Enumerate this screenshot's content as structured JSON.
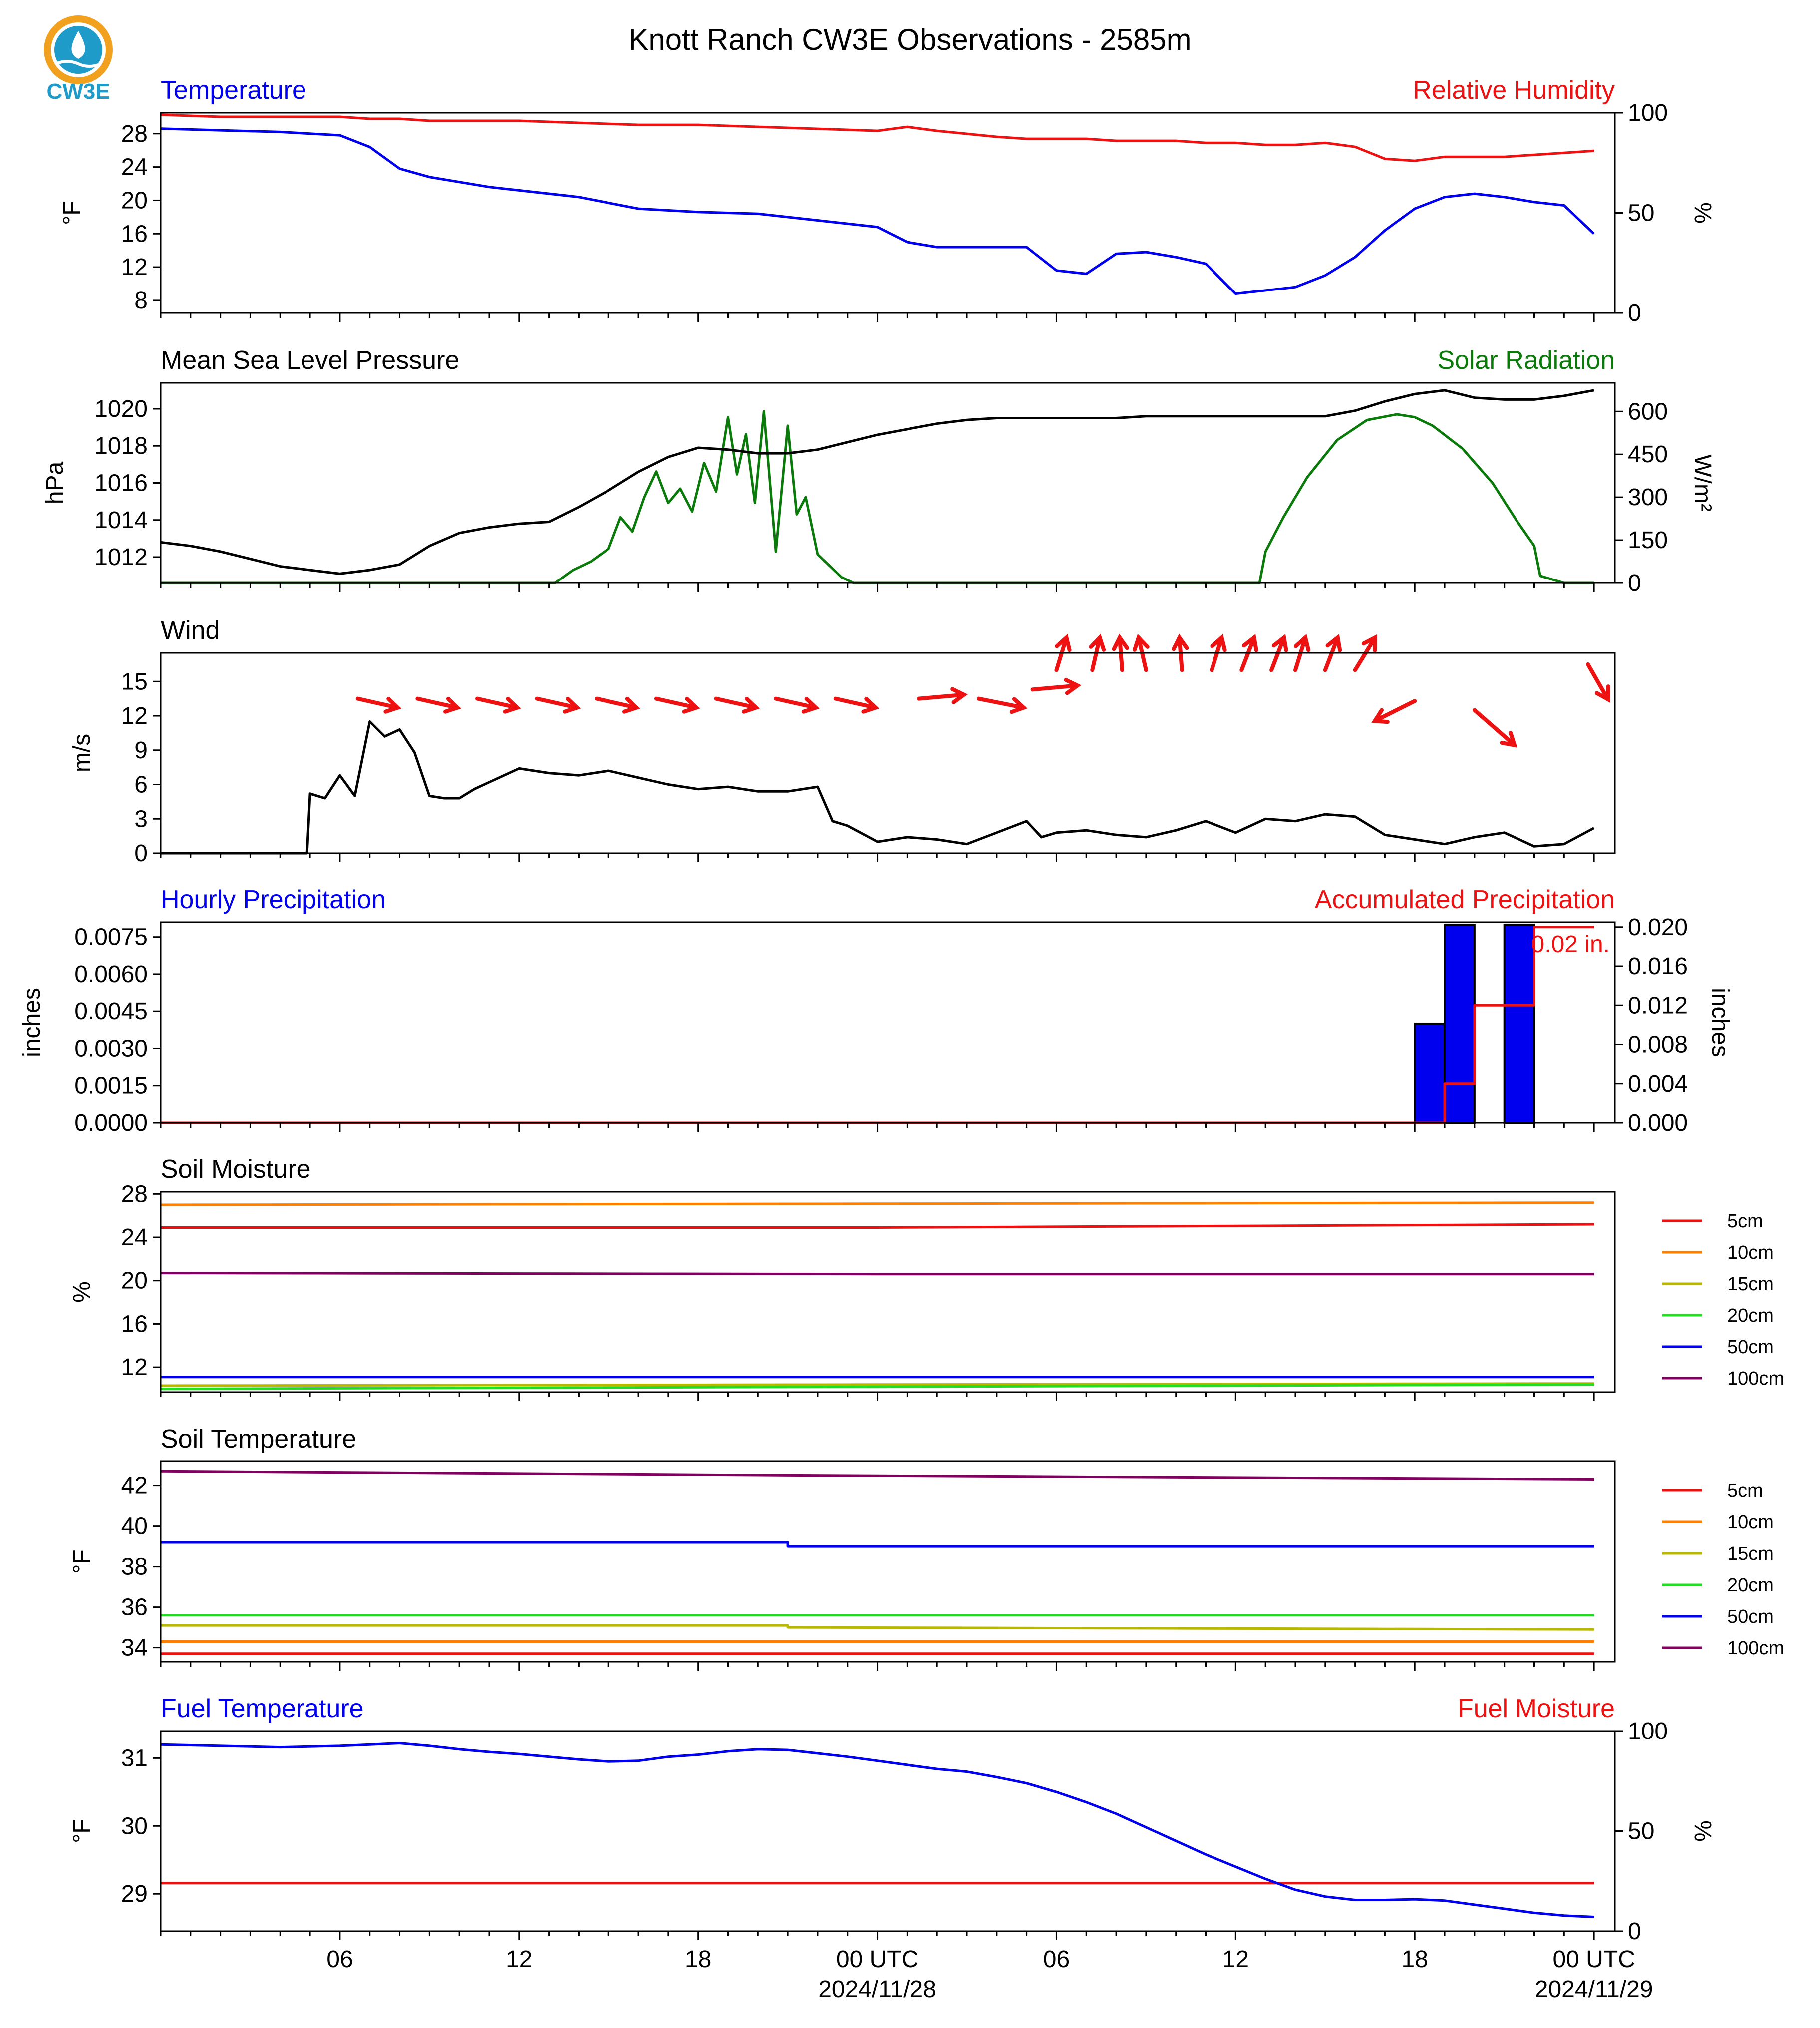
{
  "figure": {
    "title": "Knott Ranch CW3E Observations - 2585m",
    "logo_text": "CW3E",
    "x_axis": {
      "tick_labels": [
        "06",
        "12",
        "18",
        "00 UTC",
        "06",
        "12",
        "18",
        "00 UTC"
      ],
      "date_labels": [
        "2024/11/28",
        "2024/11/29"
      ]
    }
  },
  "colors": {
    "temperature": "#0000ee",
    "humidity": "#ee1111",
    "pressure": "#000000",
    "solar": "#0a7a0a",
    "wind_speed": "#000000",
    "wind_barb": "#ee1111",
    "precip_bar": "#0000ee",
    "precip_accum": "#ee1111",
    "logo": "#1f9bc9",
    "logo_orange": "#f2a11f"
  },
  "chart_data": [
    {
      "id": "temp_rh",
      "type": "line",
      "title_left": "Temperature",
      "title_right": "Relative Humidity",
      "ylabel_left": "°F",
      "ylabel_right": "%",
      "ylim_left": [
        6.5,
        30.5
      ],
      "ylim_right": [
        0,
        100
      ],
      "yticks_left": [
        "8",
        "12",
        "16",
        "20",
        "24",
        "28"
      ],
      "yticks_right": [
        "0",
        "50",
        "100"
      ],
      "x_hours": [
        0,
        2,
        4,
        6,
        7,
        8,
        9,
        10,
        11,
        12,
        14,
        16,
        18,
        20,
        22,
        24,
        25,
        26,
        28,
        29,
        30,
        31,
        32,
        33,
        34,
        35,
        36,
        37,
        38,
        39,
        40,
        41,
        42,
        43,
        44,
        45,
        46,
        47,
        48
      ],
      "temperature": [
        28.6,
        28.4,
        28.2,
        27.8,
        26.4,
        23.8,
        22.8,
        22.2,
        21.6,
        21.2,
        20.4,
        19.0,
        18.6,
        18.4,
        17.6,
        16.8,
        15.0,
        14.4,
        14.4,
        14.4,
        11.6,
        11.2,
        13.6,
        13.8,
        13.2,
        12.4,
        8.8,
        9.2,
        9.6,
        11.0,
        13.2,
        16.4,
        19.0,
        20.4,
        20.8,
        20.4,
        19.8,
        19.4,
        16.0
      ],
      "humidity": [
        99,
        98,
        98,
        98,
        97,
        97,
        96,
        96,
        96,
        96,
        95,
        94,
        94,
        93,
        92,
        91,
        93,
        91,
        88,
        87,
        87,
        87,
        86,
        86,
        86,
        85,
        85,
        84,
        84,
        85,
        83,
        77,
        76,
        78,
        78,
        78,
        79,
        80,
        81
      ]
    },
    {
      "id": "pres_solar",
      "type": "line",
      "title_left": "Mean Sea Level Pressure",
      "title_right": "Solar Radiation",
      "ylabel_left": "hPa",
      "ylabel_right": "W/m²",
      "ylim_left": [
        1010.6,
        1021.4
      ],
      "ylim_right": [
        0,
        700
      ],
      "yticks_left": [
        "1012",
        "1014",
        "1016",
        "1018",
        "1020"
      ],
      "yticks_right": [
        "0",
        "150",
        "300",
        "450",
        "600"
      ],
      "x_hours": [
        0,
        1,
        2,
        3,
        4,
        5,
        6,
        7,
        8,
        9,
        10,
        11,
        12,
        13,
        14,
        15,
        16,
        17,
        18,
        19,
        20,
        21,
        22,
        23,
        24,
        25,
        26,
        27,
        28,
        29,
        30,
        31,
        32,
        33,
        34,
        35,
        36,
        37,
        38,
        39,
        40,
        41,
        42,
        43,
        44,
        45,
        46,
        47,
        48
      ],
      "pressure": [
        1012.8,
        1012.6,
        1012.3,
        1011.9,
        1011.5,
        1011.3,
        1011.1,
        1011.3,
        1011.6,
        1012.6,
        1013.3,
        1013.6,
        1013.8,
        1013.9,
        1014.7,
        1015.6,
        1016.6,
        1017.4,
        1017.9,
        1017.8,
        1017.6,
        1017.6,
        1017.8,
        1018.2,
        1018.6,
        1018.9,
        1019.2,
        1019.4,
        1019.5,
        1019.5,
        1019.5,
        1019.5,
        1019.5,
        1019.6,
        1019.6,
        1019.6,
        1019.6,
        1019.6,
        1019.6,
        1019.6,
        1019.9,
        1020.4,
        1020.8,
        1021.0,
        1020.6,
        1020.5,
        1020.5,
        1020.7,
        1021.0
      ],
      "solar_x_hours": [
        0,
        13.2,
        13.8,
        14.4,
        15.0,
        15.4,
        15.8,
        16.2,
        16.6,
        17.0,
        17.4,
        17.8,
        18.2,
        18.6,
        19.0,
        19.3,
        19.6,
        19.9,
        20.2,
        20.6,
        21.0,
        21.3,
        21.6,
        22.0,
        22.4,
        22.8,
        23.2,
        36.8,
        37.0,
        37.6,
        38.4,
        39.4,
        40.4,
        41.4,
        42.0,
        42.6,
        43.6,
        44.6,
        45.4,
        46.0,
        46.2,
        47.0,
        48.0
      ],
      "solar": [
        0,
        0,
        45,
        75,
        120,
        230,
        180,
        300,
        390,
        280,
        330,
        250,
        420,
        320,
        580,
        380,
        520,
        280,
        600,
        110,
        550,
        240,
        300,
        100,
        60,
        20,
        0,
        0,
        110,
        230,
        370,
        500,
        570,
        590,
        580,
        550,
        470,
        350,
        220,
        130,
        25,
        0,
        0
      ]
    },
    {
      "id": "wind",
      "type": "line",
      "title_left": "Wind",
      "ylabel_left": "m/s",
      "ylim_left": [
        0,
        17.5
      ],
      "yticks_left": [
        "0",
        "3",
        "6",
        "9",
        "12",
        "15"
      ],
      "x_hours": [
        0,
        4.9,
        5.0,
        5.5,
        6.0,
        6.5,
        7.0,
        7.5,
        8.0,
        8.5,
        9.0,
        9.5,
        10.0,
        10.5,
        11.0,
        12.0,
        13.0,
        14.0,
        15.0,
        16.0,
        17.0,
        18.0,
        19.0,
        20.0,
        21.0,
        22.0,
        22.5,
        23.0,
        24.0,
        25.0,
        26.0,
        27.0,
        28.0,
        29.0,
        29.5,
        30.0,
        31.0,
        32.0,
        33.0,
        34.0,
        35.0,
        36.0,
        37.0,
        38.0,
        39.0,
        40.0,
        41.0,
        42.0,
        43.0,
        44.0,
        45.0,
        46.0,
        47.0,
        48.0
      ],
      "speed": [
        0,
        0,
        5.2,
        4.8,
        6.8,
        5.0,
        11.5,
        10.2,
        10.8,
        8.8,
        5.0,
        4.8,
        4.8,
        5.6,
        6.2,
        7.4,
        7.0,
        6.8,
        7.2,
        6.6,
        6.0,
        5.6,
        5.8,
        5.4,
        5.4,
        5.8,
        2.8,
        2.4,
        1.0,
        1.4,
        1.2,
        0.8,
        1.8,
        2.8,
        1.4,
        1.8,
        2.0,
        1.6,
        1.4,
        2.0,
        2.8,
        1.8,
        3.0,
        2.8,
        3.4,
        3.2,
        1.6,
        1.2,
        0.8,
        1.4,
        1.8,
        0.6,
        0.8,
        2.2
      ],
      "barb_x_hours": [
        6.6,
        8.6,
        10.6,
        12.6,
        14.6,
        16.6,
        18.6,
        20.6,
        22.6,
        25.4,
        27.4,
        29.2,
        30.0,
        31.2,
        32.2,
        33.0,
        34.2,
        35.2,
        36.2,
        37.2,
        38.0,
        39.0,
        40.0,
        42.0,
        44.0,
        47.8
      ],
      "barb_y_speed": [
        13.5,
        13.5,
        13.5,
        13.5,
        13.5,
        13.5,
        13.5,
        13.5,
        13.5,
        13.5,
        13.5,
        14.3,
        16.0,
        16.0,
        16.0,
        16.0,
        16.0,
        16.0,
        16.0,
        16.0,
        16.0,
        16.0,
        16.0,
        13.3,
        12.5,
        16.5
      ],
      "barb_dx": [
        80,
        80,
        80,
        80,
        80,
        80,
        80,
        80,
        80,
        90,
        90,
        90,
        20,
        15,
        -5,
        -15,
        -5,
        20,
        25,
        25,
        20,
        25,
        40,
        -80,
        80,
        40
      ],
      "barb_dy": [
        18,
        18,
        18,
        18,
        18,
        18,
        18,
        18,
        18,
        -8,
        18,
        -8,
        -65,
        -65,
        -65,
        -65,
        -65,
        -65,
        -65,
        -65,
        -65,
        -65,
        -65,
        40,
        70,
        70
      ]
    },
    {
      "id": "precip",
      "type": "bar",
      "title_left": "Hourly Precipitation",
      "title_right": "Accumulated Precipitation",
      "ylabel_left": "inches",
      "ylabel_right": "inches",
      "ylim_left": [
        0,
        0.0081
      ],
      "ylim_right": [
        0,
        0.0205
      ],
      "yticks_left": [
        "0.0000",
        "0.0015",
        "0.0030",
        "0.0045",
        "0.0060",
        "0.0075"
      ],
      "yticks_right": [
        "0.000",
        "0.004",
        "0.008",
        "0.012",
        "0.016",
        "0.020"
      ],
      "bars_x_hours": [
        42.5,
        43.5,
        45.5
      ],
      "bars_values": [
        0.004,
        0.008,
        0.008
      ],
      "accum_x_hours": [
        0,
        43.0,
        43.0,
        44.0,
        44.0,
        46.0,
        46.0,
        48.0
      ],
      "accum_values": [
        0,
        0,
        0.004,
        0.004,
        0.012,
        0.012,
        0.02,
        0.02
      ],
      "total_label": "0.02 in."
    },
    {
      "id": "soil_moisture",
      "type": "line",
      "title_left": "Soil Moisture",
      "ylabel_left": "%",
      "ylim_left": [
        9.7,
        28.2
      ],
      "yticks_left": [
        "12",
        "16",
        "20",
        "24",
        "28"
      ],
      "x_hours": [
        0,
        24,
        48
      ],
      "legend": [
        "5cm",
        "10cm",
        "15cm",
        "20cm",
        "50cm",
        "100cm"
      ],
      "series_colors": [
        "#ee1111",
        "#ff8000",
        "#b8b800",
        "#22dd22",
        "#0000ee",
        "#800060"
      ],
      "series": [
        {
          "name": "5cm",
          "values": [
            24.9,
            24.9,
            25.2
          ]
        },
        {
          "name": "10cm",
          "values": [
            27.0,
            27.1,
            27.2
          ]
        },
        {
          "name": "15cm",
          "values": [
            10.3,
            10.4,
            10.5
          ]
        },
        {
          "name": "20cm",
          "values": [
            10.0,
            10.2,
            10.4
          ]
        },
        {
          "name": "50cm",
          "values": [
            11.1,
            11.1,
            11.1
          ]
        },
        {
          "name": "100cm",
          "values": [
            20.7,
            20.6,
            20.6
          ]
        }
      ]
    },
    {
      "id": "soil_temperature",
      "type": "line",
      "title_left": "Soil Temperature",
      "ylabel_left": "°F",
      "ylim_left": [
        33.3,
        43.2
      ],
      "yticks_left": [
        "34",
        "36",
        "38",
        "40",
        "42"
      ],
      "x_hours": [
        0,
        21,
        21,
        48
      ],
      "legend": [
        "5cm",
        "10cm",
        "15cm",
        "20cm",
        "50cm",
        "100cm"
      ],
      "series_colors": [
        "#ee1111",
        "#ff8000",
        "#b8b800",
        "#22dd22",
        "#0000ee",
        "#800060"
      ],
      "series": [
        {
          "name": "5cm",
          "values": [
            33.7,
            33.7,
            33.7,
            33.7
          ]
        },
        {
          "name": "10cm",
          "values": [
            34.3,
            34.3,
            34.3,
            34.3
          ]
        },
        {
          "name": "15cm",
          "values": [
            35.1,
            35.1,
            35.0,
            34.9
          ]
        },
        {
          "name": "20cm",
          "values": [
            35.6,
            35.6,
            35.6,
            35.6
          ]
        },
        {
          "name": "50cm",
          "values": [
            39.2,
            39.2,
            39.0,
            39.0
          ]
        },
        {
          "name": "100cm",
          "values": [
            42.7,
            42.5,
            42.5,
            42.3
          ]
        }
      ]
    },
    {
      "id": "fuel",
      "type": "line",
      "title_left": "Fuel Temperature",
      "title_right": "Fuel Moisture",
      "ylabel_left": "°F",
      "ylabel_right": "%",
      "ylim_left": [
        28.45,
        31.4
      ],
      "ylim_right": [
        0,
        100
      ],
      "yticks_left": [
        "29",
        "30",
        "31"
      ],
      "yticks_right": [
        "0",
        "50",
        "100"
      ],
      "x_hours": [
        0,
        2,
        4,
        6,
        7,
        8,
        9,
        10,
        11,
        12,
        13,
        14,
        15,
        16,
        17,
        18,
        19,
        20,
        21,
        22,
        23,
        24,
        25,
        26,
        27,
        28,
        29,
        30,
        31,
        32,
        33,
        34,
        35,
        36,
        37,
        38,
        39,
        40,
        41,
        42,
        43,
        44,
        45,
        46,
        47,
        48
      ],
      "fuel_temperature": [
        31.2,
        31.18,
        31.16,
        31.18,
        31.2,
        31.22,
        31.18,
        31.13,
        31.09,
        31.06,
        31.02,
        30.98,
        30.95,
        30.96,
        31.02,
        31.05,
        31.1,
        31.13,
        31.12,
        31.07,
        31.02,
        30.96,
        30.9,
        30.84,
        30.8,
        30.72,
        30.63,
        30.5,
        30.35,
        30.18,
        29.98,
        29.78,
        29.58,
        29.4,
        29.22,
        29.06,
        28.96,
        28.91,
        28.91,
        28.92,
        28.9,
        28.84,
        28.78,
        28.72,
        28.68,
        28.66
      ],
      "fuel_moisture": [
        24,
        24,
        24,
        24,
        24,
        24,
        24,
        24,
        24,
        24,
        24,
        24,
        24,
        24,
        24,
        24,
        24,
        24,
        24,
        24,
        24,
        24,
        24,
        24,
        24,
        24,
        24,
        24,
        24,
        24,
        24,
        24,
        24,
        24,
        24,
        24,
        24,
        24,
        24,
        24,
        24,
        24,
        24,
        24,
        24,
        24
      ]
    }
  ]
}
